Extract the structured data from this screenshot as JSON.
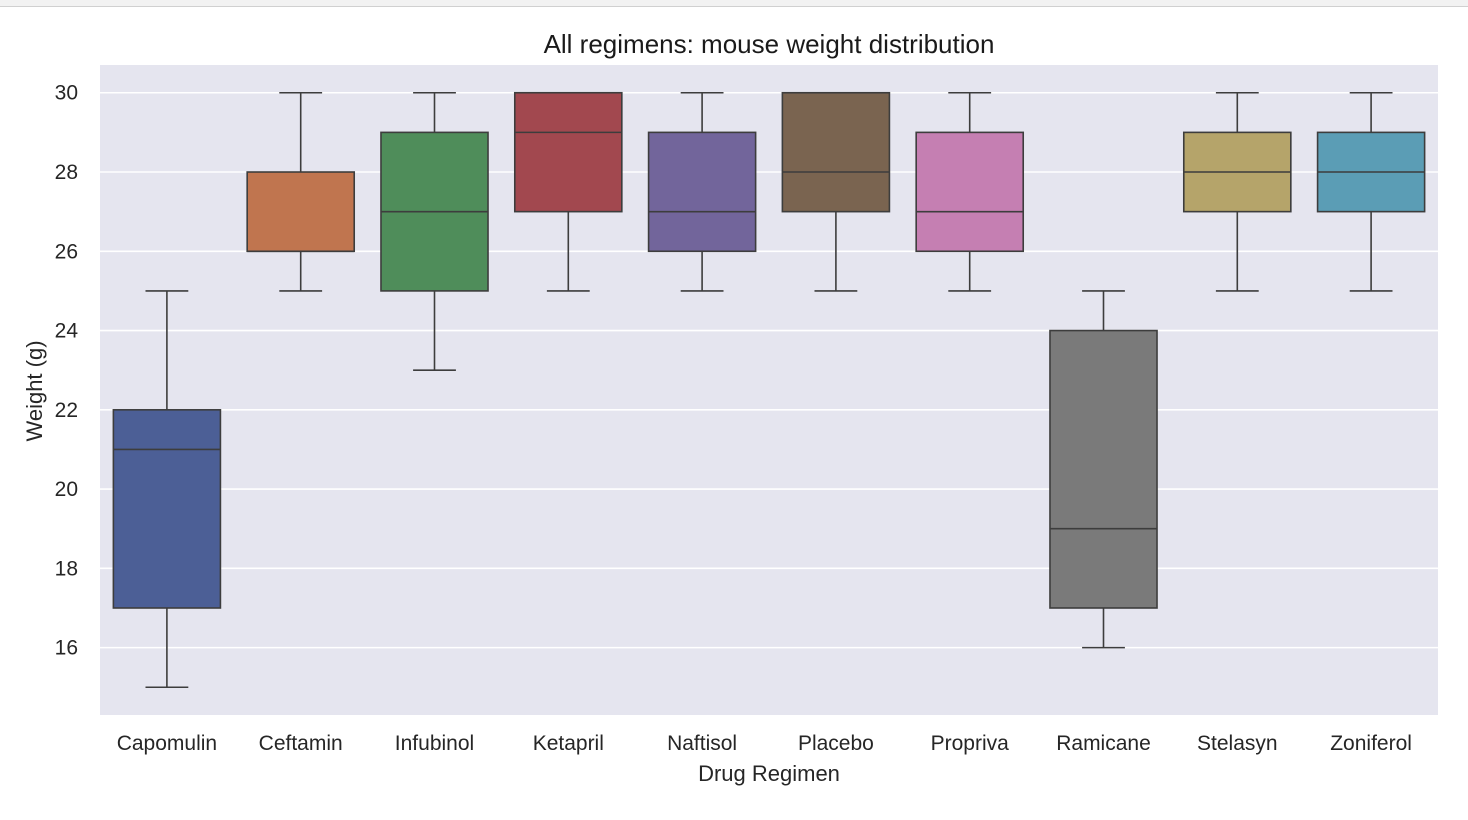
{
  "chart_data": {
    "type": "box",
    "title": "All regimens: mouse weight distribution",
    "xlabel": "Drug Regimen",
    "ylabel": "Weight (g)",
    "ylim": [
      14.3,
      30.7
    ],
    "yticks": [
      16,
      18,
      20,
      22,
      24,
      26,
      28,
      30
    ],
    "grid": true,
    "background": "#e5e5ef",
    "grid_color": "#ffffff",
    "categories": [
      "Capomulin",
      "Ceftamin",
      "Infubinol",
      "Ketapril",
      "Naftisol",
      "Placebo",
      "Propriva",
      "Ramicane",
      "Stelasyn",
      "Zoniferol"
    ],
    "boxes": [
      {
        "name": "Capomulin",
        "whislo": 15,
        "q1": 17,
        "med": 21,
        "q3": 22,
        "whishi": 25,
        "color": "#4c5f96"
      },
      {
        "name": "Ceftamin",
        "whislo": 25,
        "q1": 26,
        "med": 26,
        "q3": 28,
        "whishi": 30,
        "color": "#c0754f"
      },
      {
        "name": "Infubinol",
        "whislo": 23,
        "q1": 25,
        "med": 27,
        "q3": 29,
        "whishi": 30,
        "color": "#4f8d5a"
      },
      {
        "name": "Ketapril",
        "whislo": 25,
        "q1": 27,
        "med": 29,
        "q3": 30,
        "whishi": 30,
        "color": "#a2484f"
      },
      {
        "name": "Naftisol",
        "whislo": 25,
        "q1": 26,
        "med": 27,
        "q3": 29,
        "whishi": 30,
        "color": "#72659b"
      },
      {
        "name": "Placebo",
        "whislo": 25,
        "q1": 27,
        "med": 28,
        "q3": 30,
        "whishi": 30,
        "color": "#7a6450"
      },
      {
        "name": "Propriva",
        "whislo": 25,
        "q1": 26,
        "med": 27,
        "q3": 29,
        "whishi": 30,
        "color": "#c57fb2"
      },
      {
        "name": "Ramicane",
        "whislo": 16,
        "q1": 17,
        "med": 19,
        "q3": 24,
        "whishi": 25,
        "color": "#7a7a7a"
      },
      {
        "name": "Stelasyn",
        "whislo": 25,
        "q1": 27,
        "med": 28,
        "q3": 29,
        "whishi": 30,
        "color": "#b5a46a"
      },
      {
        "name": "Zoniferol",
        "whislo": 25,
        "q1": 27,
        "med": 28,
        "q3": 29,
        "whishi": 30,
        "color": "#5b9db5"
      }
    ]
  }
}
